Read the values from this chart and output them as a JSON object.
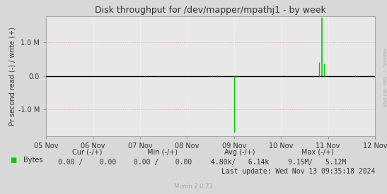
{
  "title": "Disk throughput for /dev/mapper/mpathj1 - by week",
  "ylabel": "Pr second read (-) / write (+)",
  "background_color": "#d8d8d8",
  "plot_bg_color": "#e8e8e8",
  "grid_color_h": "#ffaaaa",
  "grid_color_v": "#ffffff",
  "line_color": "#00cc00",
  "x_tick_labels": [
    "05 Nov",
    "06 Nov",
    "07 Nov",
    "08 Nov",
    "09 Nov",
    "10 Nov",
    "11 Nov",
    "12 Nov"
  ],
  "x_tick_positions": [
    0.0,
    0.142857,
    0.285714,
    0.428571,
    0.571428,
    0.714285,
    0.857142,
    1.0
  ],
  "ylim": [
    -1800000,
    1800000
  ],
  "yticks": [
    -1000000,
    0,
    1000000
  ],
  "ytick_labels": [
    "-1.0 M",
    "0.0",
    "1.0 M"
  ],
  "legend_label": "Bytes",
  "cur_label": "Cur (-/+)",
  "min_label": "Min (-/+)",
  "avg_label": "Avg (-/+)",
  "max_label": "Max (-/+)",
  "cur_neg": "0.00",
  "cur_pos": "0.00",
  "min_neg": "0.00",
  "min_pos": "0.00",
  "avg_neg": "4.80k",
  "avg_pos": "6.14k",
  "max_neg": "9.15M",
  "max_pos": "5.12M",
  "last_update": "Last update: Wed Nov 13 09:35:18 2024",
  "munin_version": "Munin 2.0.73",
  "rrdtool_label": "RRDTOOL / TOBI OETIKER"
}
